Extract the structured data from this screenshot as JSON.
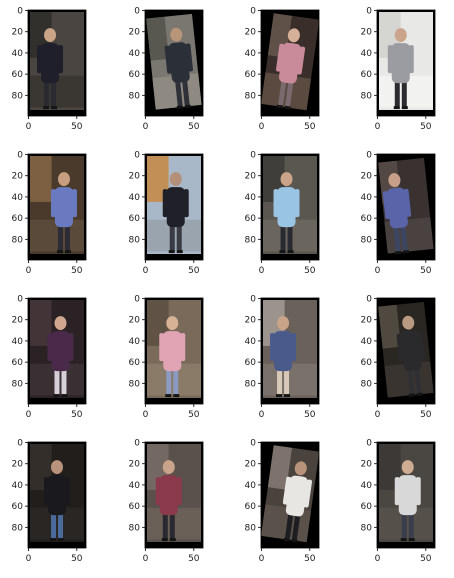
{
  "figure": {
    "rows": 4,
    "cols": 4,
    "background_color": "#ffffff",
    "x_ticks": [
      "0",
      "50"
    ],
    "y_ticks": [
      "0",
      "20",
      "40",
      "60",
      "80"
    ]
  },
  "images": [
    {
      "name": "person-crop-1-1",
      "scene": "dark-shop-front",
      "subject": "person-dark-shirt-walking",
      "colors": {
        "bg": "#4a4540",
        "bg2": "#2c2a28",
        "shirt": "#1e1f2a",
        "pants": "#2a2a30",
        "skin": "#c9a487",
        "floor": "#3a3632"
      }
    },
    {
      "name": "person-crop-1-2",
      "scene": "tilted-grey-walkway",
      "subject": "person-dark-clothes-running",
      "colors": {
        "bg": "#7a7670",
        "bg2": "#505048",
        "shirt": "#2b2f38",
        "pants": "#303038",
        "skin": "#b89478",
        "floor": "#8e8a82"
      }
    },
    {
      "name": "person-crop-1-3",
      "scene": "tilted-dark-interior",
      "subject": "person-pink-top-dark-hair",
      "colors": {
        "bg": "#3a2e2a",
        "bg2": "#6a5a50",
        "shirt": "#c98a9a",
        "pants": "#7a6a70",
        "skin": "#d7b09a",
        "floor": "#5a4a40"
      }
    },
    {
      "name": "person-crop-1-4",
      "scene": "bright-white-floor",
      "subject": "person-grey-shirt-dark-pants",
      "colors": {
        "bg": "#e8e8e6",
        "bg2": "#cfcfcc",
        "shirt": "#9a9ca2",
        "pants": "#2c2c30",
        "skin": "#caa58c",
        "floor": "#f2f2f0"
      }
    },
    {
      "name": "person-crop-2-1",
      "scene": "doorway-wood-frame",
      "subject": "person-blue-printed-shirt",
      "colors": {
        "bg": "#4a3a2c",
        "bg2": "#8a6a48",
        "shirt": "#6a7ac0",
        "pants": "#2c2c36",
        "skin": "#c89e80",
        "floor": "#5a4a3a"
      }
    },
    {
      "name": "person-crop-2-2",
      "scene": "bright-shop-window",
      "subject": "person-dark-clothes-by-machine",
      "colors": {
        "bg": "#a8b8c8",
        "bg2": "#c8863a",
        "shirt": "#202028",
        "pants": "#3a3a44",
        "skin": "#b4907a",
        "floor": "#9aa4ae"
      }
    },
    {
      "name": "person-crop-2-3",
      "scene": "grey-plaza",
      "subject": "person-light-blue-shirt",
      "colors": {
        "bg": "#5a5650",
        "bg2": "#3a3834",
        "shirt": "#9ac4e4",
        "pants": "#2a2a32",
        "skin": "#caa488",
        "floor": "#6a665e"
      }
    },
    {
      "name": "person-crop-2-4",
      "scene": "tilted-interior",
      "subject": "person-blue-shirt-jeans",
      "colors": {
        "bg": "#3a3230",
        "bg2": "#5a4e48",
        "shirt": "#5a64a8",
        "pants": "#3c4660",
        "skin": "#c6a08a",
        "floor": "#4a4240"
      }
    },
    {
      "name": "person-crop-3-1",
      "scene": "dark-hall",
      "subject": "person-long-hair-shorts",
      "colors": {
        "bg": "#2a2224",
        "bg2": "#4a3a3c",
        "shirt": "#4a2a4a",
        "pants": "#d8d0d8",
        "skin": "#d0a890",
        "floor": "#3a3034"
      }
    },
    {
      "name": "person-crop-3-2",
      "scene": "brown-floor",
      "subject": "person-pink-top-denim-shorts",
      "colors": {
        "bg": "#7a6a5a",
        "bg2": "#5a4c40",
        "shirt": "#e0a4b4",
        "pants": "#8a9ac0",
        "skin": "#d8b294",
        "floor": "#8a7a68"
      }
    },
    {
      "name": "person-crop-3-3",
      "scene": "doorway-light",
      "subject": "person-blue-shirt-khaki-shorts",
      "colors": {
        "bg": "#6a625a",
        "bg2": "#a8a098",
        "shirt": "#4a5a8a",
        "pants": "#d8c8b8",
        "skin": "#caa488",
        "floor": "#7a726a"
      }
    },
    {
      "name": "person-crop-3-4",
      "scene": "tilted-dark-room-with-chairs",
      "subject": "person-dark-clothes-with-chair",
      "colors": {
        "bg": "#2a2622",
        "bg2": "#5a5248",
        "shirt": "#2a2a2c",
        "pants": "#303034",
        "skin": "#b89a82",
        "floor": "#3a3430"
      }
    },
    {
      "name": "person-crop-4-1",
      "scene": "dark-night-street",
      "subject": "person-dark-top-blue-jeans",
      "colors": {
        "bg": "#221e1c",
        "bg2": "#3a3230",
        "shirt": "#1a1a1e",
        "pants": "#4a6a9a",
        "skin": "#b8927a",
        "floor": "#2a2624"
      }
    },
    {
      "name": "person-crop-4-2",
      "scene": "blurry-hall",
      "subject": "person-maroon-top-white-bag",
      "colors": {
        "bg": "#5a504c",
        "bg2": "#7a6e68",
        "shirt": "#8a3a4a",
        "pants": "#2a2830",
        "skin": "#caa48a",
        "floor": "#6a6058"
      }
    },
    {
      "name": "person-crop-4-3",
      "scene": "tilted-overhead-lobby",
      "subject": "person-white-shirt-dark-pants",
      "colors": {
        "bg": "#4a423c",
        "bg2": "#8a8078",
        "shirt": "#e8e6e2",
        "pants": "#1e1e22",
        "skin": "#b8927a",
        "floor": "#5a524a"
      }
    },
    {
      "name": "person-crop-4-4",
      "scene": "grey-plaza",
      "subject": "person-white-print-tee-dark-jeans",
      "colors": {
        "bg": "#4a4642",
        "bg2": "#3a3634",
        "shirt": "#d8d8d8",
        "pants": "#3a3e4c",
        "skin": "#d0ac92",
        "floor": "#55504a"
      }
    }
  ]
}
